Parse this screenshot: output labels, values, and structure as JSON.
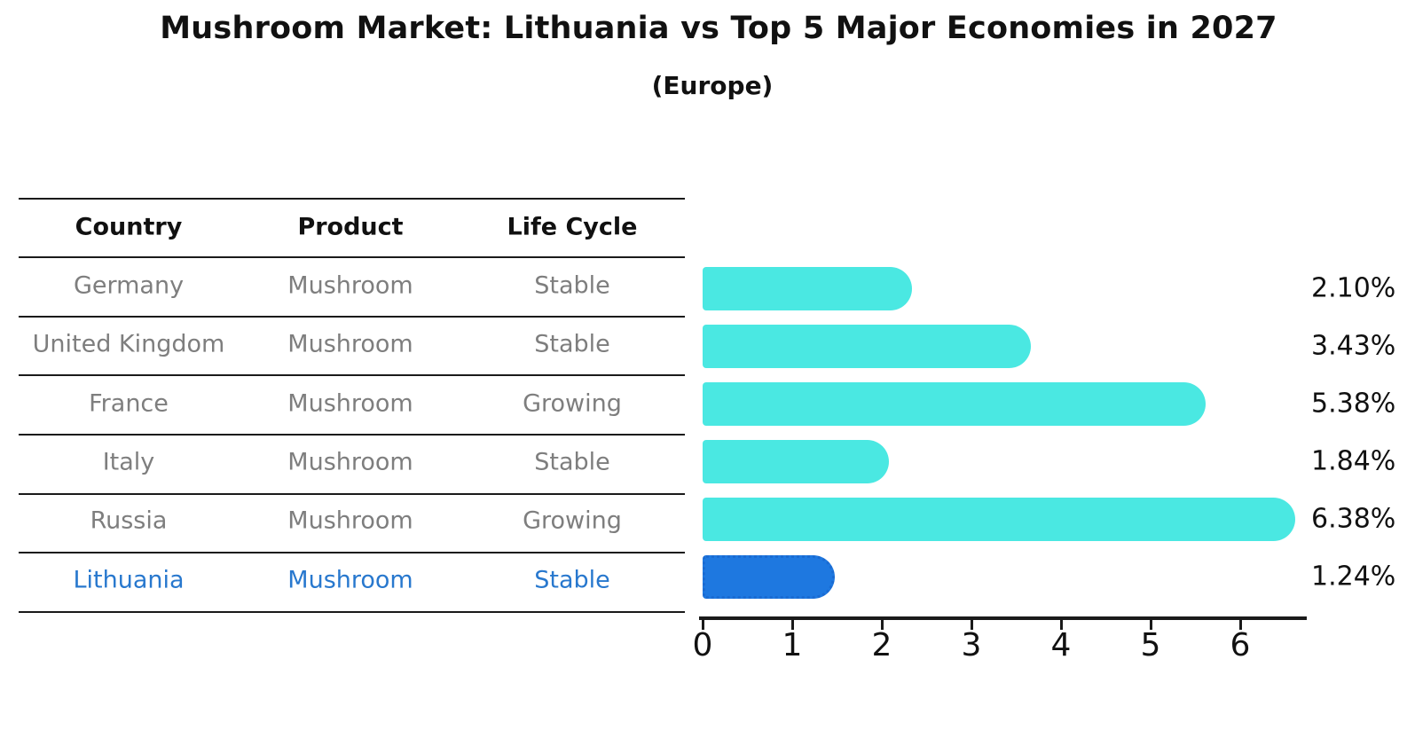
{
  "title": "Mushroom Market: Lithuania vs Top 5 Major Economies in 2027",
  "subtitle": "(Europe)",
  "table": {
    "headers": [
      "Country",
      "Product",
      "Life Cycle"
    ],
    "rows": [
      {
        "country": "Germany",
        "product": "Mushroom",
        "life_cycle": "Stable",
        "highlight": false
      },
      {
        "country": "United Kingdom",
        "product": "Mushroom",
        "life_cycle": "Stable",
        "highlight": false
      },
      {
        "country": "France",
        "product": "Mushroom",
        "life_cycle": "Growing",
        "highlight": false
      },
      {
        "country": "Italy",
        "product": "Mushroom",
        "life_cycle": "Stable",
        "highlight": false
      },
      {
        "country": "Russia",
        "product": "Mushroom",
        "life_cycle": "Growing",
        "highlight": false
      },
      {
        "country": "Lithuania",
        "product": "Mushroom",
        "life_cycle": "Stable",
        "highlight": true
      }
    ]
  },
  "chart_data": {
    "type": "bar",
    "orientation": "horizontal",
    "title": "Mushroom Market: Lithuania vs Top 5 Major Economies in 2027",
    "subtitle": "(Europe)",
    "categories": [
      "Germany",
      "United Kingdom",
      "France",
      "Italy",
      "Russia",
      "Lithuania"
    ],
    "values": [
      2.1,
      3.43,
      5.38,
      1.84,
      6.38,
      1.24
    ],
    "value_labels": [
      "2.10%",
      "3.43%",
      "5.38%",
      "1.84%",
      "6.38%",
      "1.24%"
    ],
    "x_ticks": [
      0,
      1,
      2,
      3,
      4,
      5,
      6
    ],
    "xlim": [
      0,
      6.7
    ],
    "grid": false,
    "legend": false,
    "highlight_index": 5
  },
  "colors": {
    "bar": "#4ae8e2",
    "highlight_bar": "#1e78e0",
    "highlight_bar_border": "#1a6bd2",
    "highlight_text": "#2878ce",
    "row_text": "#7e7e7e",
    "line": "#1a1a1a",
    "title_text": "#111111"
  }
}
